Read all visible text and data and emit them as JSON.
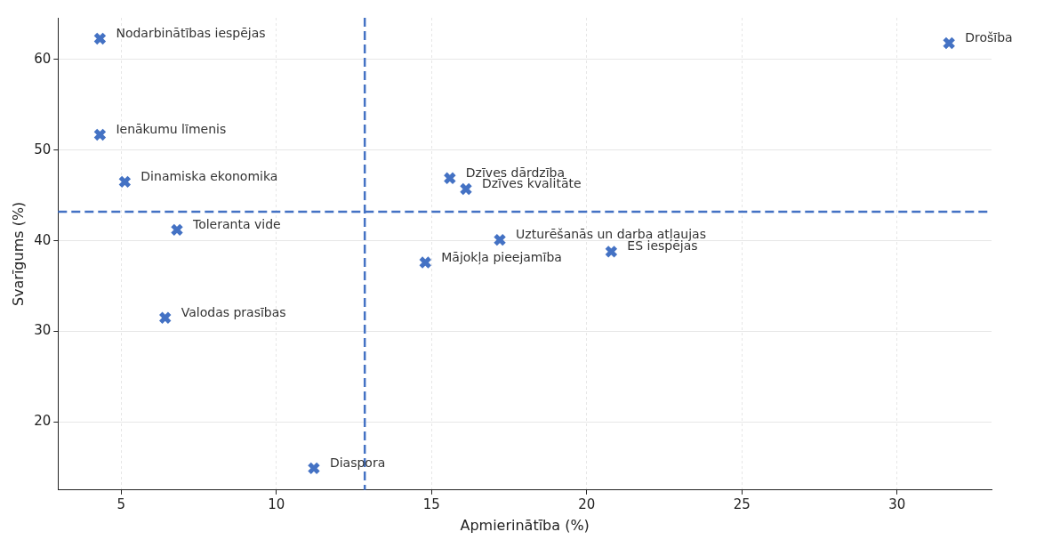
{
  "chart_data": {
    "type": "scatter",
    "xlabel": "Apmierinātība (%)",
    "ylabel": "Svarīgums (%)",
    "series": [
      {
        "color": "#4472c4",
        "x": [
          4.32,
          4.32,
          5.12,
          6.8,
          6.42,
          11.21,
          14.8,
          15.59,
          16.11,
          17.2,
          20.79,
          31.67
        ],
        "values": [
          62.3,
          51.7,
          46.5,
          41.2,
          31.5,
          14.9,
          37.6,
          46.9,
          45.7,
          40.1,
          38.8,
          61.8
        ]
      }
    ],
    "annotations": [
      {
        "text": "Nodarbinātības iespējas",
        "x": 4.32,
        "y": 62.3
      },
      {
        "text": "Ienākumu līmenis",
        "x": 4.32,
        "y": 51.7
      },
      {
        "text": "Dinamiska ekonomika",
        "x": 5.12,
        "y": 46.5
      },
      {
        "text": "Toleranta vide",
        "x": 6.8,
        "y": 41.2
      },
      {
        "text": "Valodas prasības",
        "x": 6.42,
        "y": 31.5
      },
      {
        "text": "Diaspora",
        "x": 11.21,
        "y": 14.9
      },
      {
        "text": "Mājokļa pieejamība",
        "x": 14.8,
        "y": 37.6
      },
      {
        "text": "Dzīves dārdzība",
        "x": 15.59,
        "y": 46.9
      },
      {
        "text": "Dzīves kvalitāte",
        "x": 16.11,
        "y": 45.7
      },
      {
        "text": "Uzturēšanās un darba atļaujas",
        "x": 17.2,
        "y": 40.1
      },
      {
        "text": "ES iespējas",
        "x": 20.79,
        "y": 38.8
      },
      {
        "text": "Drošība",
        "x": 31.67,
        "y": 61.8
      }
    ],
    "ref_lines": [
      {
        "axis": "x",
        "value": 12.85,
        "color": "#4472c4",
        "line_style": "dashed"
      },
      {
        "axis": "y",
        "value": 43.2,
        "color": "#4472c4",
        "line_style": "dashed"
      }
    ],
    "xlim": [
      2.97,
      33.04
    ],
    "ylim": [
      12.5,
      64.6
    ],
    "xticks": [
      5,
      10,
      15,
      20,
      25,
      30
    ],
    "yticks": [
      20,
      30,
      40,
      50,
      60
    ],
    "grid": true,
    "legend": false,
    "marker": "cross"
  }
}
